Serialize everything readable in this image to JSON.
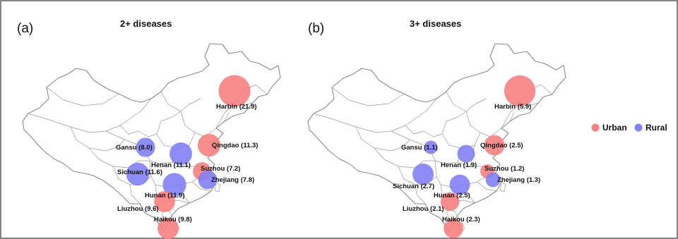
{
  "panels": [
    {
      "letter": "(a)",
      "title": "2+ diseases",
      "cities": [
        {
          "name": "Harbin (21.9)",
          "type": "urban",
          "value": 21.9
        },
        {
          "name": "Gansu (8.0)",
          "type": "rural",
          "value": 8.0
        },
        {
          "name": "Qingdao (11.3)",
          "type": "urban",
          "value": 11.3
        },
        {
          "name": "Henan (11.1)",
          "type": "rural",
          "value": 11.1
        },
        {
          "name": "Sichuan (11.6)",
          "type": "rural",
          "value": 11.6
        },
        {
          "name": "Suzhou (7.2)",
          "type": "urban",
          "value": 7.2
        },
        {
          "name": "Zhejiang (7.8)",
          "type": "rural",
          "value": 7.8
        },
        {
          "name": "Hunan (11.9)",
          "type": "rural",
          "value": 11.9
        },
        {
          "name": "Liuzhou (9.6)",
          "type": "urban",
          "value": 9.6
        },
        {
          "name": "Haikou (9.8)",
          "type": "urban",
          "value": 9.8
        }
      ]
    },
    {
      "letter": "(b)",
      "title": "3+ diseases",
      "cities": [
        {
          "name": "Harbin (5.9)",
          "type": "urban",
          "value": 5.9
        },
        {
          "name": "Gansu (1.1)",
          "type": "rural",
          "value": 1.1
        },
        {
          "name": "Qingdao (2.5)",
          "type": "urban",
          "value": 2.5
        },
        {
          "name": "Henan (1.9)",
          "type": "rural",
          "value": 1.9
        },
        {
          "name": "Sichuan (2.7)",
          "type": "rural",
          "value": 2.7
        },
        {
          "name": "Suzhou (1.2)",
          "type": "urban",
          "value": 1.2
        },
        {
          "name": "Zhejiang (1.3)",
          "type": "rural",
          "value": 1.3
        },
        {
          "name": "Hunan (2.5)",
          "type": "rural",
          "value": 2.5
        },
        {
          "name": "Liuzhou (2.1)",
          "type": "urban",
          "value": 2.1
        },
        {
          "name": "Haikou (2.3)",
          "type": "urban",
          "value": 2.3
        }
      ]
    }
  ],
  "legend": {
    "items": [
      {
        "label": "Urban",
        "type": "urban",
        "color": "#f87f7f"
      },
      {
        "label": "Rural",
        "type": "rural",
        "color": "#8280f4"
      }
    ]
  },
  "colors": {
    "urban": "#f87f7f",
    "rural": "#8280f4"
  }
}
